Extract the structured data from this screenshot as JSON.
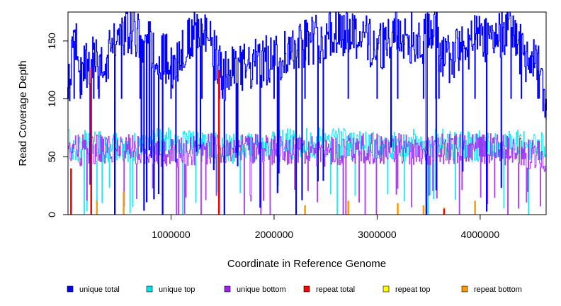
{
  "chart_data": {
    "type": "line",
    "title": "",
    "xlabel": "Coordinate in Reference Genome",
    "ylabel": "Read Coverage Depth",
    "xlim": [
      0,
      4640000
    ],
    "ylim": [
      0,
      175
    ],
    "x_ticks": [
      1000000,
      2000000,
      3000000,
      4000000
    ],
    "x_tick_labels": [
      "1000000",
      "2000000",
      "3000000",
      "4000000"
    ],
    "y_ticks": [
      0,
      50,
      100,
      150
    ],
    "y_tick_labels": [
      "0",
      "50",
      "100",
      "150"
    ],
    "grid": false,
    "legend_position": "bottom",
    "series": [
      {
        "name": "unique total",
        "color": "#0000ff",
        "typical": [
          100,
          150
        ],
        "x": [
          0,
          60000,
          120000,
          250000,
          300000,
          520000,
          700000,
          1000000,
          1300000,
          1470000,
          1500000,
          2000000,
          2300000,
          2720000,
          3000000,
          3200000,
          3450000,
          3570000,
          3600000,
          3950000,
          4300000,
          4400000,
          4560000,
          4640000
        ],
        "y": [
          110,
          150,
          125,
          140,
          120,
          160,
          155,
          130,
          165,
          125,
          120,
          135,
          150,
          160,
          145,
          155,
          150,
          172,
          130,
          150,
          162,
          140,
          125,
          90
        ]
      },
      {
        "name": "unique top",
        "color": "#00e5ee",
        "typical": [
          45,
          75
        ],
        "x": [
          0,
          500000,
          1000000,
          1500000,
          2000000,
          2500000,
          3000000,
          3500000,
          4000000,
          4640000
        ],
        "y": [
          60,
          58,
          62,
          57,
          60,
          63,
          58,
          61,
          59,
          60
        ]
      },
      {
        "name": "unique bottom",
        "color": "#a020f0",
        "typical": [
          40,
          70
        ],
        "x": [
          0,
          500000,
          1000000,
          1500000,
          2000000,
          2500000,
          3000000,
          3500000,
          4000000,
          4640000
        ],
        "y": [
          55,
          57,
          54,
          58,
          56,
          55,
          57,
          56,
          58,
          50
        ]
      },
      {
        "name": "repeat total",
        "color": "#ff0000",
        "typical": [
          0,
          0
        ],
        "x": [
          0,
          30000,
          225000,
          1465000,
          3650000,
          4640000
        ],
        "y": [
          0,
          40,
          127,
          125,
          5,
          0
        ]
      },
      {
        "name": "repeat top",
        "color": "#ffff00",
        "typical": [
          0,
          0
        ],
        "x": [
          0,
          4640000
        ],
        "y": [
          0,
          0
        ]
      },
      {
        "name": "repeat bottom",
        "color": "#ff9900",
        "typical": [
          0,
          0
        ],
        "x": [
          0,
          30000,
          280000,
          540000,
          2300000,
          2720000,
          3200000,
          3450000,
          3650000,
          3950000,
          4640000
        ],
        "y": [
          0,
          30,
          12,
          20,
          8,
          12,
          10,
          8,
          6,
          12,
          0
        ]
      }
    ]
  }
}
